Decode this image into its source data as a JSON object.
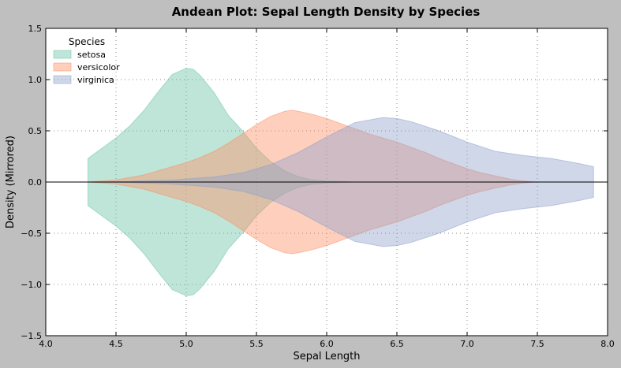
{
  "chart_data": {
    "type": "area",
    "title": "Andean Plot: Sepal Length Density by Species",
    "xlabel": "Sepal Length",
    "ylabel": "Density (Mirrored)",
    "xlim": [
      4.0,
      8.0
    ],
    "ylim": [
      -1.5,
      1.5
    ],
    "x_ticks": [
      "4.0",
      "4.5",
      "5.0",
      "5.5",
      "6.0",
      "6.5",
      "7.0",
      "7.5",
      "8.0"
    ],
    "y_ticks": [
      "1.5",
      "1.0",
      "0.5",
      "0.0",
      "−0.5",
      "−1.0",
      "−1.5"
    ],
    "grid": true,
    "legend": {
      "title": "Species",
      "placement": "top-left"
    },
    "mirrored": true,
    "series": [
      {
        "name": "setosa",
        "color": "#66c2a5",
        "x": [
          4.3,
          4.4,
          4.5,
          4.6,
          4.7,
          4.8,
          4.9,
          5.0,
          5.05,
          5.1,
          5.2,
          5.3,
          5.4,
          5.5,
          5.6,
          5.7,
          5.8,
          5.9,
          6.0,
          6.1,
          6.2
        ],
        "y": [
          0.23,
          0.33,
          0.43,
          0.55,
          0.7,
          0.88,
          1.05,
          1.11,
          1.1,
          1.04,
          0.87,
          0.65,
          0.5,
          0.33,
          0.2,
          0.11,
          0.05,
          0.02,
          0.01,
          0.005,
          0.0
        ]
      },
      {
        "name": "versicolor",
        "color": "#fc8d62",
        "x": [
          4.3,
          4.5,
          4.7,
          4.9,
          5.0,
          5.1,
          5.2,
          5.3,
          5.4,
          5.5,
          5.6,
          5.7,
          5.75,
          5.8,
          5.9,
          6.0,
          6.1,
          6.2,
          6.3,
          6.4,
          6.5,
          6.6,
          6.7,
          6.8,
          6.9,
          7.0,
          7.1,
          7.2,
          7.3,
          7.4,
          7.5
        ],
        "y": [
          0.0,
          0.02,
          0.07,
          0.15,
          0.19,
          0.24,
          0.3,
          0.38,
          0.47,
          0.56,
          0.64,
          0.69,
          0.7,
          0.69,
          0.66,
          0.62,
          0.57,
          0.52,
          0.47,
          0.43,
          0.39,
          0.34,
          0.29,
          0.23,
          0.18,
          0.13,
          0.09,
          0.06,
          0.03,
          0.01,
          0.0
        ]
      },
      {
        "name": "virginica",
        "color": "#8da0cb",
        "x": [
          4.3,
          4.6,
          4.9,
          5.2,
          5.4,
          5.6,
          5.8,
          6.0,
          6.2,
          6.4,
          6.5,
          6.6,
          6.8,
          7.0,
          7.2,
          7.4,
          7.6,
          7.8,
          7.9
        ],
        "y": [
          0.0,
          0.005,
          0.02,
          0.05,
          0.09,
          0.17,
          0.29,
          0.44,
          0.58,
          0.63,
          0.62,
          0.59,
          0.5,
          0.39,
          0.3,
          0.26,
          0.23,
          0.18,
          0.15
        ]
      }
    ]
  }
}
